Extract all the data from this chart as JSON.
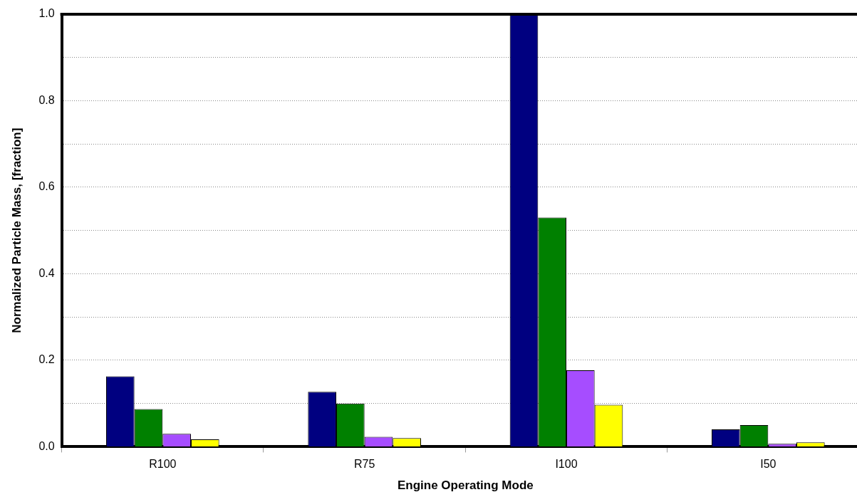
{
  "chart_data": {
    "type": "bar",
    "xlabel": "Engine Operating Mode",
    "ylabel": "Normalized Particle Mass, [fraction]",
    "categories": [
      "R100",
      "R75",
      "I100",
      "I50"
    ],
    "series": [
      {
        "color": "#000080",
        "values": [
          0.163,
          0.127,
          1.0,
          0.04
        ]
      },
      {
        "color": "#008000",
        "values": [
          0.087,
          0.1,
          0.53,
          0.05
        ]
      },
      {
        "color": "#a64dff",
        "values": [
          0.03,
          0.023,
          0.177,
          0.007
        ]
      },
      {
        "color": "#ffff00",
        "values": [
          0.017,
          0.02,
          0.097,
          0.01
        ]
      }
    ],
    "ylim": [
      0,
      1.0
    ],
    "yticks": [
      {
        "value": 0,
        "label": "0.0"
      },
      {
        "value": 0.1,
        "label": null
      },
      {
        "value": 0.2,
        "label": "0.2"
      },
      {
        "value": 0.3,
        "label": null
      },
      {
        "value": 0.4,
        "label": "0.4"
      },
      {
        "value": 0.5,
        "label": null
      },
      {
        "value": 0.6,
        "label": "0.6"
      },
      {
        "value": 0.7,
        "label": null
      },
      {
        "value": 0.8,
        "label": "0.8"
      },
      {
        "value": 0.9,
        "label": null
      },
      {
        "value": 1.0,
        "label": "1.0"
      }
    ],
    "grid": "y",
    "legend": false
  }
}
